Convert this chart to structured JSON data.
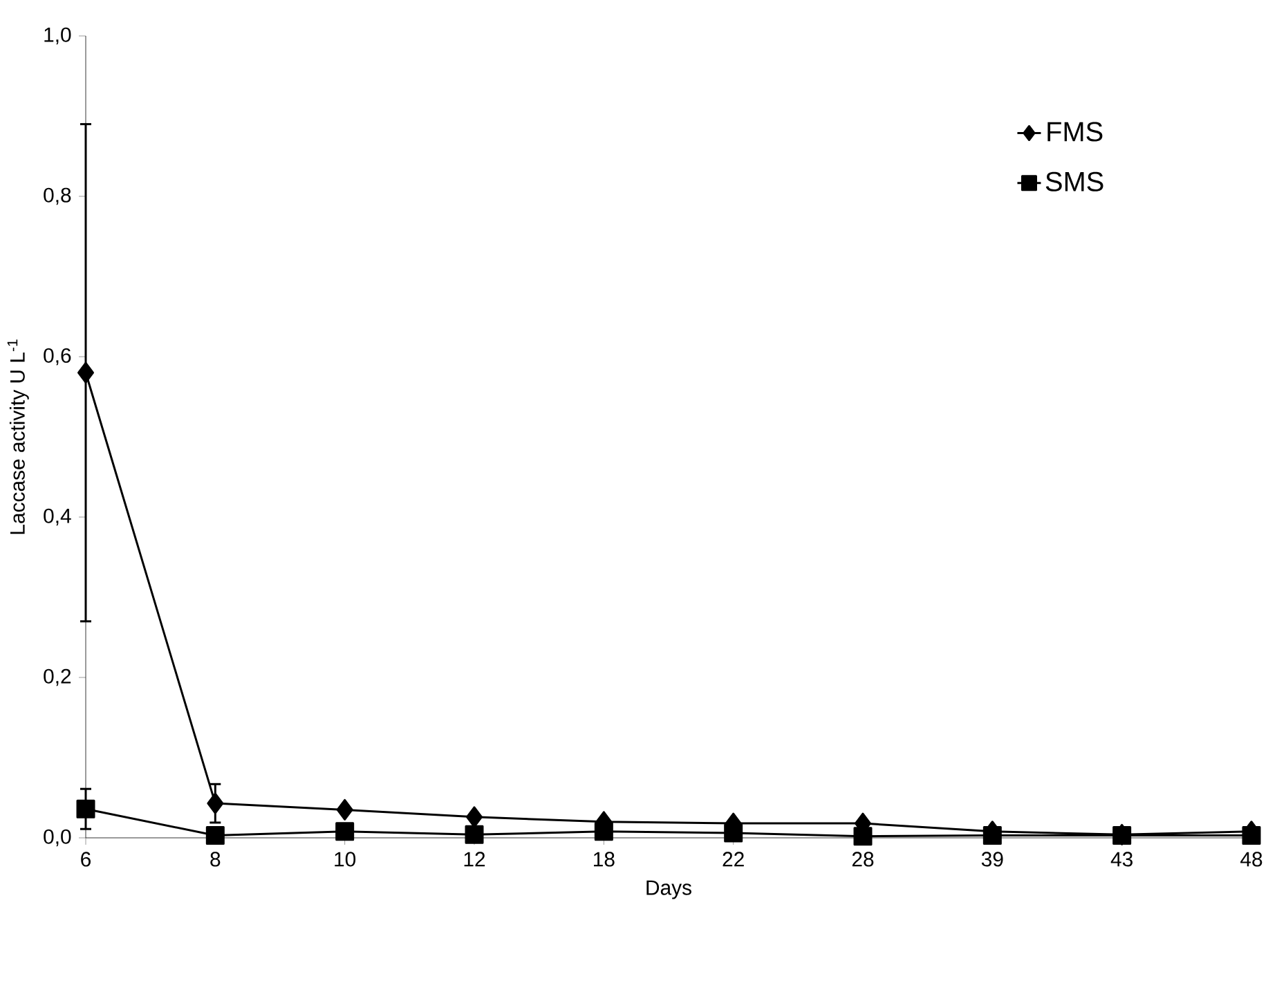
{
  "chart_data": {
    "type": "line",
    "xlabel": "Days",
    "ylabel": "Laccase  activity U L$^{-1}$",
    "categories": [
      "6",
      "8",
      "10",
      "12",
      "18",
      "22",
      "28",
      "39",
      "43",
      "48"
    ],
    "series": [
      {
        "name": "FMS",
        "color": "#000000",
        "marker": "diamond",
        "values": [
          0.58,
          0.043,
          0.035,
          0.026,
          0.02,
          0.018,
          0.018,
          0.008,
          0.004,
          0.008
        ],
        "errors": [
          0.31,
          0.024,
          null,
          null,
          null,
          null,
          null,
          null,
          null,
          null
        ]
      },
      {
        "name": "SMS",
        "color": "#000000",
        "marker": "square",
        "values": [
          0.036,
          0.003,
          0.008,
          0.004,
          0.008,
          0.006,
          0.002,
          0.003,
          0.003,
          0.003
        ],
        "errors": [
          0.025,
          null,
          null,
          null,
          null,
          null,
          null,
          null,
          null,
          null
        ]
      }
    ],
    "ylim": [
      0,
      1.0
    ],
    "yticks": [
      {
        "value": 0,
        "label": "0,0"
      },
      {
        "value": 0.2,
        "label": "0,2"
      },
      {
        "value": 0.4,
        "label": "0,4"
      },
      {
        "value": 0.6,
        "label": "0,6"
      },
      {
        "value": 0.8,
        "label": "0,8"
      },
      {
        "value": 1.0,
        "label": "1,0"
      }
    ],
    "grid": false,
    "legend": "top right"
  }
}
